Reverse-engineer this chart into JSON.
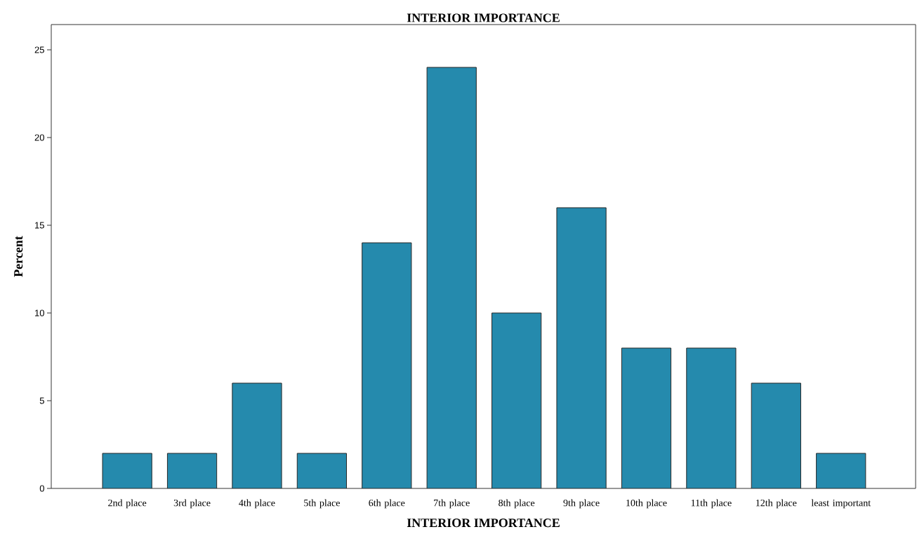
{
  "chart_data": {
    "type": "bar",
    "title": "INTERIOR IMPORTANCE",
    "xlabel": "INTERIOR IMPORTANCE",
    "ylabel": "Percent",
    "categories": [
      "2nd place",
      "3rd place",
      "4th place",
      "5th place",
      "6th place",
      "7th place",
      "8th place",
      "9th place",
      "10th place",
      "11th place",
      "12th place",
      "least important"
    ],
    "values": [
      2,
      2,
      6,
      2,
      14,
      24,
      10,
      16,
      8,
      8,
      6,
      2
    ],
    "color": "#258aad",
    "ylim": [
      0,
      26.44
    ],
    "yticks": [
      0,
      5,
      10,
      15,
      20,
      25
    ]
  }
}
